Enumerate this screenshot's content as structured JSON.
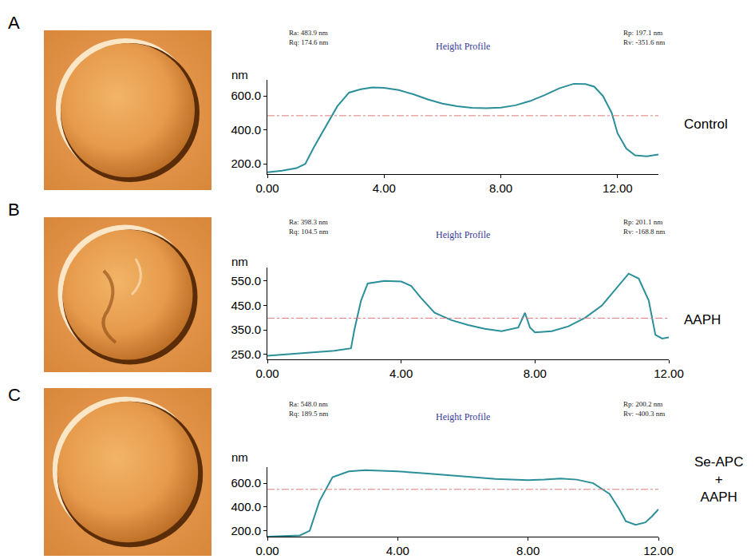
{
  "chart_data": [
    {
      "type": "line",
      "panel": "A",
      "label": [
        "Control"
      ],
      "title": "Height Profile",
      "stats": [
        "Ra: 483.9 nm",
        "Rq: 174.6 nm"
      ],
      "stats_right": [
        "Rp: 197.1 nm",
        "Rv: -351.6 nm"
      ],
      "y_label": "nm",
      "ref_line": 483.9,
      "color": "#2a8f99",
      "x": [
        0,
        0.5,
        1,
        1.3,
        1.6,
        2,
        2.4,
        2.8,
        3.2,
        3.6,
        4,
        4.5,
        5,
        5.5,
        6,
        6.5,
        7,
        7.5,
        8,
        8.5,
        9,
        9.5,
        10,
        10.5,
        10.9,
        11.2,
        11.5,
        11.8,
        12,
        12.3,
        12.6,
        13,
        13.4
      ],
      "values": [
        150,
        160,
        175,
        200,
        300,
        420,
        540,
        620,
        640,
        650,
        648,
        635,
        610,
        580,
        555,
        540,
        530,
        528,
        532,
        545,
        570,
        605,
        645,
        672,
        670,
        655,
        600,
        500,
        380,
        290,
        250,
        245,
        255
      ],
      "xlim": [
        0,
        13.4
      ],
      "xticks": [
        {
          "value": 0,
          "label": "0.00"
        },
        {
          "value": 4,
          "label": "4.00"
        },
        {
          "value": 8,
          "label": "8.00"
        },
        {
          "value": 12,
          "label": "12.00"
        }
      ],
      "ylim": [
        140,
        695
      ],
      "yticks": [
        {
          "value": 200,
          "label": "200.0"
        },
        {
          "value": 400,
          "label": "400.0"
        },
        {
          "value": 600,
          "label": "600.0"
        }
      ]
    },
    {
      "type": "line",
      "panel": "B",
      "label": [
        "AAPH"
      ],
      "title": "Height Profile",
      "stats": [
        "Ra: 398.3 nm",
        "Rq: 104.5 nm"
      ],
      "stats_right": [
        "Rp: 201.1 nm",
        "Rv: -168.8 nm"
      ],
      "y_label": "nm",
      "ref_line": 398.3,
      "color": "#2a8f99",
      "x": [
        0,
        1,
        2,
        2.5,
        2.6,
        2.8,
        3,
        3.5,
        4,
        4.3,
        4.6,
        5,
        5.5,
        6,
        6.5,
        7,
        7.5,
        7.7,
        7.85,
        8,
        8.5,
        9,
        9.5,
        10,
        10.5,
        10.8,
        11.1,
        11.4,
        11.6,
        11.8,
        12
      ],
      "values": [
        245,
        255,
        265,
        275,
        350,
        470,
        540,
        550,
        548,
        530,
        480,
        420,
        390,
        370,
        355,
        345,
        360,
        420,
        360,
        340,
        345,
        365,
        400,
        450,
        530,
        580,
        560,
        470,
        330,
        315,
        320
      ],
      "xlim": [
        0,
        12
      ],
      "xticks": [
        {
          "value": 0,
          "label": "0.00"
        },
        {
          "value": 4,
          "label": "4.00"
        },
        {
          "value": 8,
          "label": "8.00"
        },
        {
          "value": 12,
          "label": "12.00"
        }
      ],
      "ylim": [
        230,
        605
      ],
      "yticks": [
        {
          "value": 250,
          "label": "250.0"
        },
        {
          "value": 350,
          "label": "350.0"
        },
        {
          "value": 450,
          "label": "450.0"
        },
        {
          "value": 550,
          "label": "550.0"
        }
      ]
    },
    {
      "type": "line",
      "panel": "C",
      "label": [
        "Se-APC",
        "+",
        "AAPH"
      ],
      "title": "Height Profile",
      "stats": [
        "Ra: 548.0 nm",
        "Rq: 189.5 nm"
      ],
      "stats_right": [
        "Rp: 200.2 nm",
        "Rv: -400.3 nm"
      ],
      "y_label": "nm",
      "ref_line": 548.0,
      "color": "#2a8f99",
      "x": [
        0,
        1,
        1.3,
        1.6,
        2,
        2.5,
        3,
        3.5,
        4,
        5,
        6,
        7,
        7.5,
        8,
        8.5,
        9,
        9.5,
        10,
        10.5,
        10.8,
        11,
        11.3,
        11.6,
        11.8,
        12
      ],
      "values": [
        150,
        160,
        200,
        450,
        650,
        700,
        710,
        705,
        700,
        680,
        655,
        635,
        630,
        625,
        630,
        640,
        630,
        600,
        510,
        380,
        280,
        250,
        270,
        320,
        380
      ],
      "xlim": [
        0,
        12
      ],
      "xticks": [
        {
          "value": 0,
          "label": "0.00"
        },
        {
          "value": 4,
          "label": "4.00"
        },
        {
          "value": 8,
          "label": "8.00"
        },
        {
          "value": 12,
          "label": "12.00"
        }
      ],
      "ylim": [
        150,
        735
      ],
      "yticks": [
        {
          "value": 200,
          "label": "200.0"
        },
        {
          "value": 400,
          "label": "400.0"
        },
        {
          "value": 600,
          "label": "600.0"
        }
      ]
    }
  ]
}
